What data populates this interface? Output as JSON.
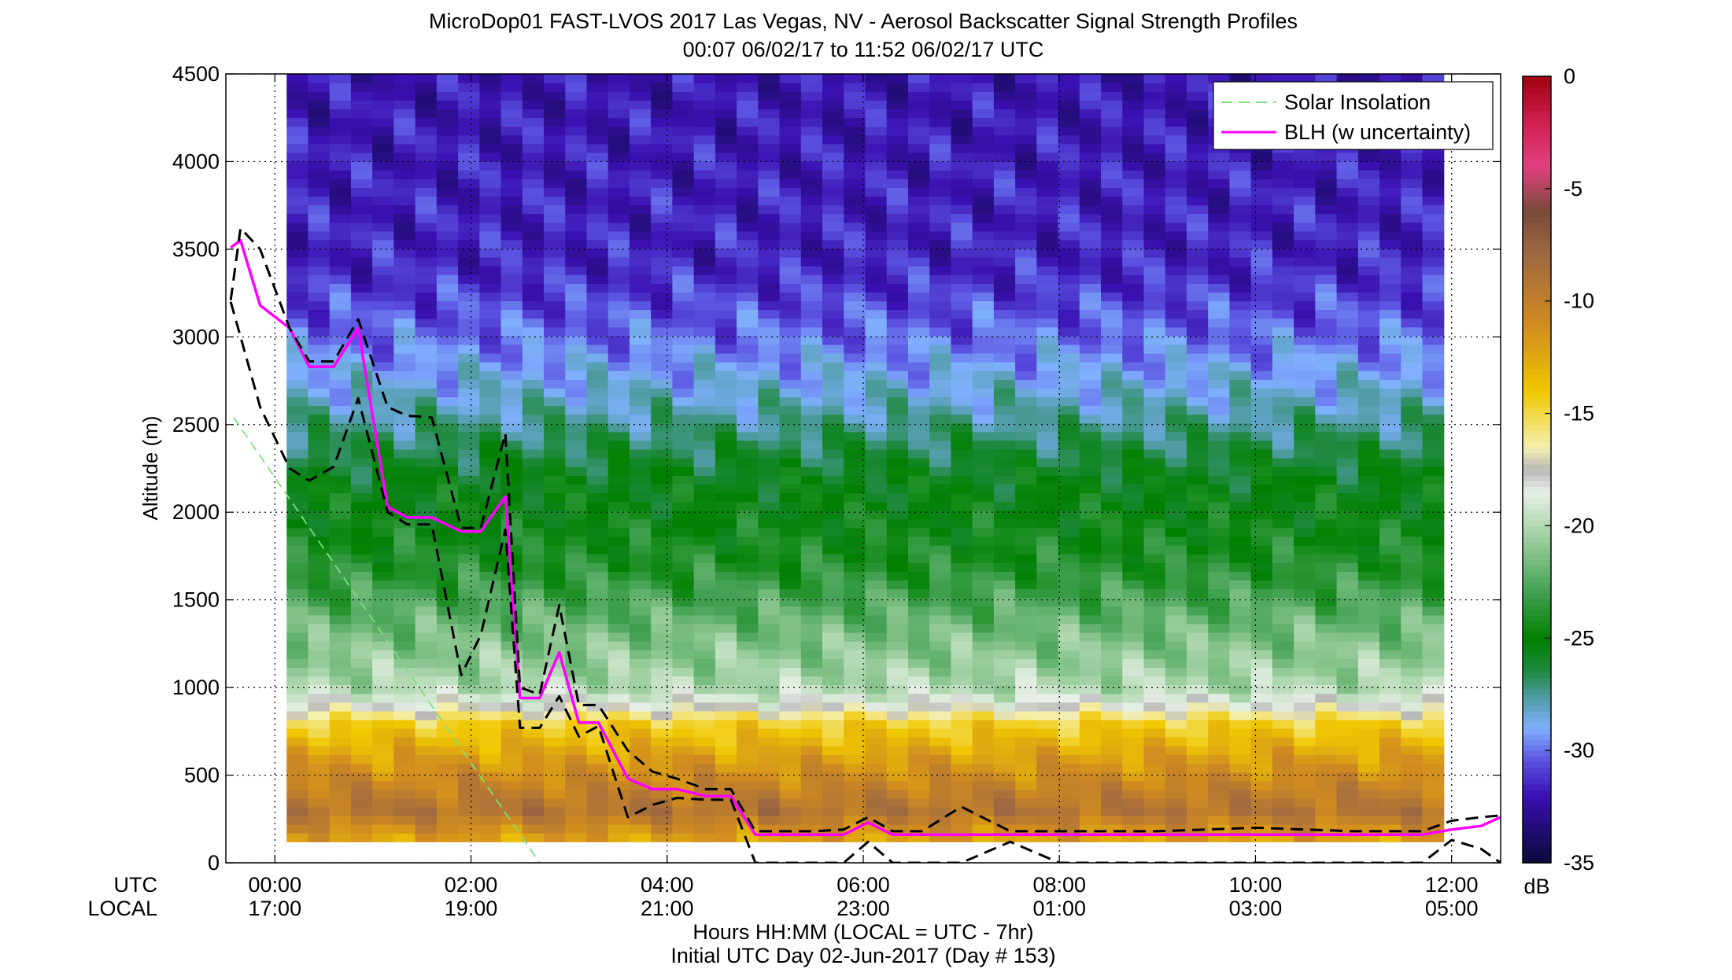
{
  "chart_data": {
    "type": "heatmap",
    "title": "MicroDop01 FAST-LVOS 2017 Las Vegas, NV - Aerosol Backscatter Signal Strength Profiles",
    "subtitle": "00:07 06/02/17 to 11:52 06/02/17  UTC",
    "ylabel": "Altitude (m)",
    "xlabel": "Hours HH:MM  (LOCAL = UTC - 7hr)",
    "footnote": "Initial UTC Day 02-Jun-2017 (Day # 153)",
    "x_row_labels": [
      "UTC",
      "LOCAL"
    ],
    "xlim": [
      -0.5,
      12.5
    ],
    "ylim": [
      0,
      4500
    ],
    "yticks": [
      0,
      500,
      1000,
      1500,
      2000,
      2500,
      3000,
      3500,
      4000,
      4500
    ],
    "xticks": [
      {
        "hour": 0,
        "utc": "00:00",
        "local": "17:00"
      },
      {
        "hour": 2,
        "utc": "02:00",
        "local": "19:00"
      },
      {
        "hour": 4,
        "utc": "04:00",
        "local": "21:00"
      },
      {
        "hour": 6,
        "utc": "06:00",
        "local": "23:00"
      },
      {
        "hour": 8,
        "utc": "08:00",
        "local": "01:00"
      },
      {
        "hour": 10,
        "utc": "10:00",
        "local": "03:00"
      },
      {
        "hour": 12,
        "utc": "12:00",
        "local": "05:00"
      }
    ],
    "grid": true,
    "heatmap": {
      "x_start": 0.12,
      "x_end": 11.92,
      "y_min": 120,
      "y_max": 4500,
      "profile": [
        {
          "alt": 120,
          "db": -12.5
        },
        {
          "alt": 300,
          "db": -9
        },
        {
          "alt": 600,
          "db": -12
        },
        {
          "alt": 800,
          "db": -14.5
        },
        {
          "alt": 900,
          "db": -18
        },
        {
          "alt": 1000,
          "db": -20
        },
        {
          "alt": 1300,
          "db": -21.5
        },
        {
          "alt": 1700,
          "db": -24
        },
        {
          "alt": 2200,
          "db": -25.5
        },
        {
          "alt": 2600,
          "db": -28
        },
        {
          "alt": 3000,
          "db": -30
        },
        {
          "alt": 3400,
          "db": -31.5
        },
        {
          "alt": 4500,
          "db": -32
        }
      ]
    },
    "colorbar": {
      "label": "dB",
      "range": [
        -35,
        0
      ],
      "ticks": [
        0,
        -5,
        -10,
        -15,
        -20,
        -25,
        -30,
        -35
      ],
      "stops": [
        {
          "v": -35,
          "c": "#0a0a3a"
        },
        {
          "v": -32,
          "c": "#3a10b0"
        },
        {
          "v": -30.5,
          "c": "#5a50e0"
        },
        {
          "v": -29,
          "c": "#80b0ff"
        },
        {
          "v": -27.5,
          "c": "#4a9a9a"
        },
        {
          "v": -26.5,
          "c": "#208a40"
        },
        {
          "v": -25,
          "c": "#008000"
        },
        {
          "v": -23,
          "c": "#40a050"
        },
        {
          "v": -20,
          "c": "#b0d8b0"
        },
        {
          "v": -18.5,
          "c": "#e8f0e8"
        },
        {
          "v": -17.5,
          "c": "#b8b8b8"
        },
        {
          "v": -16.5,
          "c": "#f5f0b0"
        },
        {
          "v": -14,
          "c": "#f0c800"
        },
        {
          "v": -11,
          "c": "#d08a20"
        },
        {
          "v": -8,
          "c": "#a06a40"
        },
        {
          "v": -6,
          "c": "#7a4a3a"
        },
        {
          "v": -4,
          "c": "#e04080"
        },
        {
          "v": -2,
          "c": "#d02050"
        },
        {
          "v": 0,
          "c": "#a00010"
        }
      ]
    },
    "legend": {
      "placement": "top-right",
      "entries": [
        {
          "label": "Solar Insolation",
          "color": "#7ee07e",
          "style": "dashed"
        },
        {
          "label": "BLH (w uncertainty)",
          "color": "#ff00ff",
          "style": "solid"
        }
      ]
    },
    "series": [
      {
        "name": "Solar Insolation",
        "color": "#7ee07e",
        "x": [
          -0.42,
          2.7
        ],
        "y": [
          2540,
          0
        ]
      },
      {
        "name": "BLH (w uncertainty)",
        "color": "#ff00ff",
        "x": [
          -0.45,
          -0.35,
          -0.15,
          0.15,
          0.35,
          0.6,
          0.85,
          1.15,
          1.35,
          1.6,
          1.9,
          2.1,
          2.35,
          2.5,
          2.7,
          2.9,
          3.1,
          3.3,
          3.6,
          3.85,
          4.1,
          4.4,
          4.65,
          4.9,
          5.2,
          5.5,
          5.8,
          6.05,
          6.3,
          6.6,
          7.0,
          7.5,
          8.0,
          9.0,
          10.0,
          11.0,
          11.7,
          12.0,
          12.3,
          12.5
        ],
        "y": [
          3510,
          3550,
          3180,
          3050,
          2830,
          2830,
          3050,
          2030,
          1970,
          1970,
          1890,
          1890,
          2090,
          940,
          940,
          1200,
          800,
          800,
          480,
          420,
          420,
          380,
          380,
          160,
          160,
          160,
          160,
          230,
          160,
          160,
          160,
          160,
          160,
          160,
          160,
          160,
          160,
          190,
          210,
          260
        ]
      },
      {
        "name": "",
        "color": "#000000",
        "x": [
          -0.45,
          -0.35,
          -0.15,
          0.15,
          0.35,
          0.6,
          0.85,
          1.15,
          1.35,
          1.6,
          1.9,
          2.1,
          2.35,
          2.5,
          2.7,
          2.9,
          3.1,
          3.3,
          3.6,
          3.85,
          4.1,
          4.4,
          4.65,
          4.9,
          5.2,
          5.5,
          5.8,
          6.05,
          6.3,
          6.6,
          7.0,
          7.5,
          8.0,
          9.0,
          10.0,
          11.0,
          11.7,
          12.0,
          12.3,
          12.5
        ],
        "y": [
          3210,
          3620,
          3500,
          3050,
          2860,
          2860,
          3100,
          2600,
          2550,
          2540,
          1910,
          1910,
          2450,
          1000,
          960,
          1470,
          900,
          900,
          640,
          520,
          480,
          420,
          420,
          180,
          180,
          180,
          190,
          260,
          180,
          180,
          320,
          180,
          180,
          180,
          200,
          180,
          180,
          240,
          260,
          270
        ]
      },
      {
        "name": "",
        "color": "#000000",
        "x": [
          -0.45,
          -0.35,
          -0.15,
          0.15,
          0.35,
          0.6,
          0.85,
          1.15,
          1.35,
          1.6,
          1.9,
          2.1,
          2.35,
          2.5,
          2.7,
          2.9,
          3.1,
          3.3,
          3.6,
          3.85,
          4.1,
          4.4,
          4.65,
          4.9,
          5.2,
          5.5,
          5.8,
          6.05,
          6.3,
          6.6,
          7.0,
          7.5,
          8.0,
          9.0,
          10.0,
          11.0,
          11.7,
          12.0,
          12.3,
          12.5
        ],
        "y": [
          3200,
          3000,
          2600,
          2250,
          2180,
          2260,
          2650,
          2000,
          1930,
          1930,
          1070,
          1300,
          1900,
          770,
          770,
          950,
          720,
          780,
          260,
          330,
          370,
          360,
          360,
          0,
          0,
          0,
          0,
          120,
          0,
          0,
          0,
          120,
          0,
          0,
          0,
          0,
          0,
          130,
          80,
          0
        ]
      }
    ]
  }
}
